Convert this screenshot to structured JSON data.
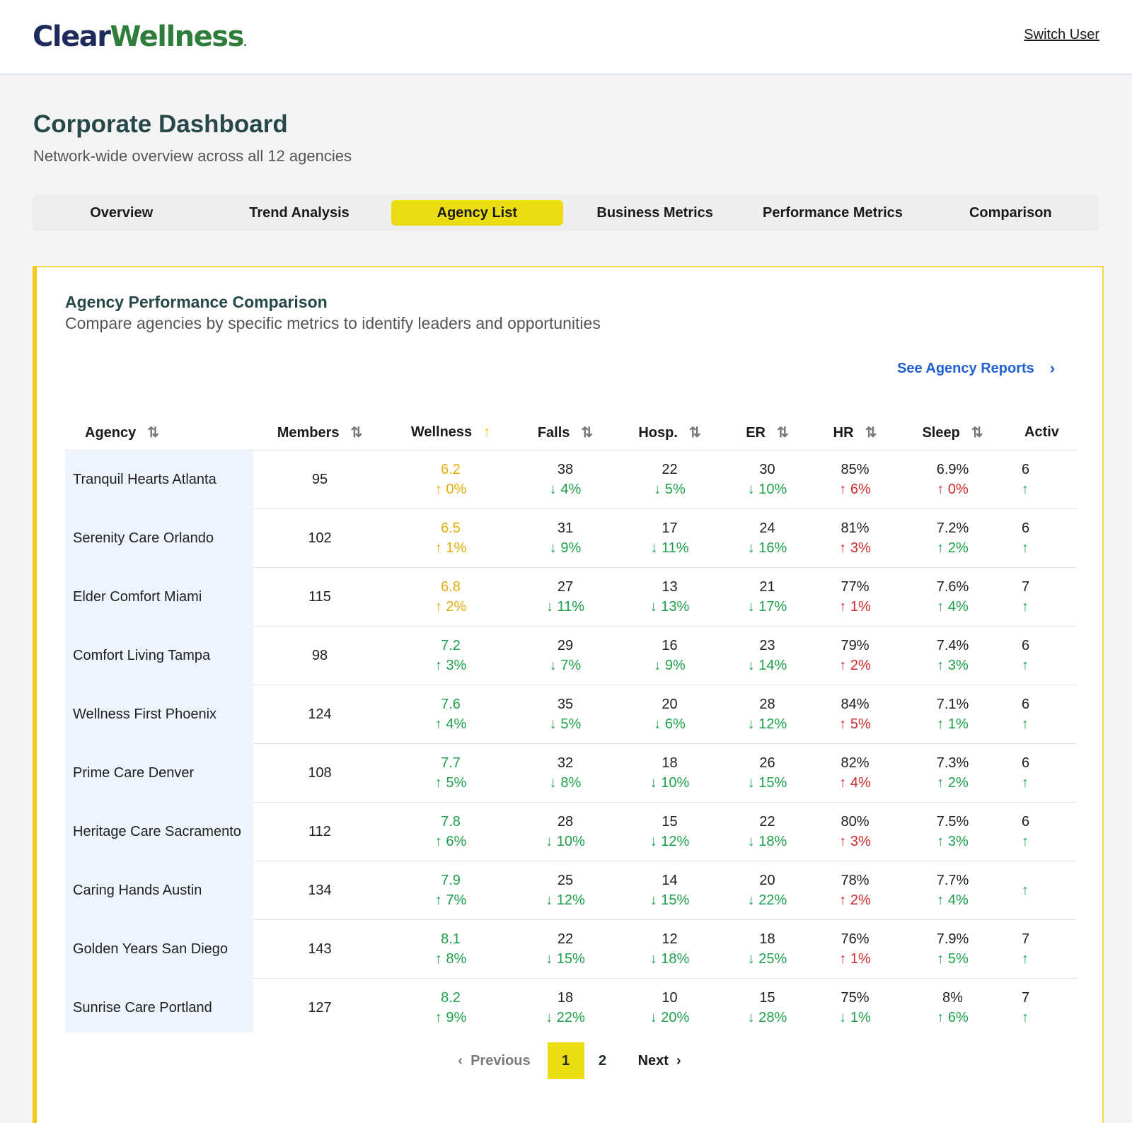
{
  "header": {
    "logo_part1": "Clear",
    "logo_part2": "Wellness",
    "logo_dot": ".",
    "switch_user": "Switch User"
  },
  "page": {
    "title": "Corporate Dashboard",
    "subtitle": "Network-wide overview across all 12 agencies"
  },
  "tabs": [
    {
      "label": "Overview",
      "active": false
    },
    {
      "label": "Trend Analysis",
      "active": false
    },
    {
      "label": "Agency List",
      "active": true
    },
    {
      "label": "Business Metrics",
      "active": false
    },
    {
      "label": "Performance Metrics",
      "active": false
    },
    {
      "label": "Comparison",
      "active": false
    }
  ],
  "card": {
    "title": "Agency Performance Comparison",
    "subtitle": "Compare agencies by specific metrics to identify leaders and opportunities",
    "reports_link": "See Agency Reports"
  },
  "table": {
    "columns": [
      "Agency",
      "Members",
      "Wellness",
      "Falls",
      "Hosp.",
      "ER",
      "HR",
      "Sleep",
      "Activ"
    ],
    "sort_icon": "⇅",
    "active_sort_icon": "↑",
    "active_sort_column": "Wellness",
    "rows": [
      {
        "agency": "Tranquil Hearts Atlanta",
        "members": "95",
        "wellness": {
          "v": "6.2",
          "c": "↑ 0%"
        },
        "falls": {
          "v": "38",
          "c": "↓ 4%"
        },
        "hosp": {
          "v": "22",
          "c": "↓ 5%"
        },
        "er": {
          "v": "30",
          "c": "↓ 10%"
        },
        "hr": {
          "v": "85%",
          "c": "↑ 6%"
        },
        "sleep": {
          "v": "6.9%",
          "c": "↑ 0%"
        },
        "activ": {
          "v": "6",
          "c": "↑"
        }
      },
      {
        "agency": "Serenity Care Orlando",
        "members": "102",
        "wellness": {
          "v": "6.5",
          "c": "↑ 1%"
        },
        "falls": {
          "v": "31",
          "c": "↓ 9%"
        },
        "hosp": {
          "v": "17",
          "c": "↓ 11%"
        },
        "er": {
          "v": "24",
          "c": "↓ 16%"
        },
        "hr": {
          "v": "81%",
          "c": "↑ 3%"
        },
        "sleep": {
          "v": "7.2%",
          "c": "↑ 2%"
        },
        "activ": {
          "v": "6",
          "c": "↑"
        }
      },
      {
        "agency": "Elder Comfort Miami",
        "members": "115",
        "wellness": {
          "v": "6.8",
          "c": "↑ 2%"
        },
        "falls": {
          "v": "27",
          "c": "↓ 11%"
        },
        "hosp": {
          "v": "13",
          "c": "↓ 13%"
        },
        "er": {
          "v": "21",
          "c": "↓ 17%"
        },
        "hr": {
          "v": "77%",
          "c": "↑ 1%"
        },
        "sleep": {
          "v": "7.6%",
          "c": "↑ 4%"
        },
        "activ": {
          "v": "7",
          "c": "↑"
        }
      },
      {
        "agency": "Comfort Living Tampa",
        "members": "98",
        "wellness": {
          "v": "7.2",
          "c": "↑ 3%"
        },
        "falls": {
          "v": "29",
          "c": "↓ 7%"
        },
        "hosp": {
          "v": "16",
          "c": "↓ 9%"
        },
        "er": {
          "v": "23",
          "c": "↓ 14%"
        },
        "hr": {
          "v": "79%",
          "c": "↑ 2%"
        },
        "sleep": {
          "v": "7.4%",
          "c": "↑ 3%"
        },
        "activ": {
          "v": "6",
          "c": "↑"
        }
      },
      {
        "agency": "Wellness First Phoenix",
        "members": "124",
        "wellness": {
          "v": "7.6",
          "c": "↑ 4%"
        },
        "falls": {
          "v": "35",
          "c": "↓ 5%"
        },
        "hosp": {
          "v": "20",
          "c": "↓ 6%"
        },
        "er": {
          "v": "28",
          "c": "↓ 12%"
        },
        "hr": {
          "v": "84%",
          "c": "↑ 5%"
        },
        "sleep": {
          "v": "7.1%",
          "c": "↑ 1%"
        },
        "activ": {
          "v": "6",
          "c": "↑"
        }
      },
      {
        "agency": "Prime Care Denver",
        "members": "108",
        "wellness": {
          "v": "7.7",
          "c": "↑ 5%"
        },
        "falls": {
          "v": "32",
          "c": "↓ 8%"
        },
        "hosp": {
          "v": "18",
          "c": "↓ 10%"
        },
        "er": {
          "v": "26",
          "c": "↓ 15%"
        },
        "hr": {
          "v": "82%",
          "c": "↑ 4%"
        },
        "sleep": {
          "v": "7.3%",
          "c": "↑ 2%"
        },
        "activ": {
          "v": "6",
          "c": "↑"
        }
      },
      {
        "agency": "Heritage Care Sacramento",
        "members": "112",
        "wellness": {
          "v": "7.8",
          "c": "↑ 6%"
        },
        "falls": {
          "v": "28",
          "c": "↓ 10%"
        },
        "hosp": {
          "v": "15",
          "c": "↓ 12%"
        },
        "er": {
          "v": "22",
          "c": "↓ 18%"
        },
        "hr": {
          "v": "80%",
          "c": "↑ 3%"
        },
        "sleep": {
          "v": "7.5%",
          "c": "↑ 3%"
        },
        "activ": {
          "v": "6",
          "c": "↑"
        }
      },
      {
        "agency": "Caring Hands Austin",
        "members": "134",
        "wellness": {
          "v": "7.9",
          "c": "↑ 7%"
        },
        "falls": {
          "v": "25",
          "c": "↓ 12%"
        },
        "hosp": {
          "v": "14",
          "c": "↓ 15%"
        },
        "er": {
          "v": "20",
          "c": "↓ 22%"
        },
        "hr": {
          "v": "78%",
          "c": "↑ 2%"
        },
        "sleep": {
          "v": "7.7%",
          "c": "↑ 4%"
        },
        "activ": {
          "v": "",
          "c": "↑"
        }
      },
      {
        "agency": "Golden Years San Diego",
        "members": "143",
        "wellness": {
          "v": "8.1",
          "c": "↑ 8%"
        },
        "falls": {
          "v": "22",
          "c": "↓ 15%"
        },
        "hosp": {
          "v": "12",
          "c": "↓ 18%"
        },
        "er": {
          "v": "18",
          "c": "↓ 25%"
        },
        "hr": {
          "v": "76%",
          "c": "↑ 1%"
        },
        "sleep": {
          "v": "7.9%",
          "c": "↑ 5%"
        },
        "activ": {
          "v": "7",
          "c": "↑"
        }
      },
      {
        "agency": "Sunrise Care Portland",
        "members": "127",
        "wellness": {
          "v": "8.2",
          "c": "↑ 9%"
        },
        "falls": {
          "v": "18",
          "c": "↓ 22%"
        },
        "hosp": {
          "v": "10",
          "c": "↓ 20%"
        },
        "er": {
          "v": "15",
          "c": "↓ 28%"
        },
        "hr": {
          "v": "75%",
          "c": "↓ 1%"
        },
        "sleep": {
          "v": "8%",
          "c": "↑ 6%"
        },
        "activ": {
          "v": "7",
          "c": "↑"
        }
      }
    ]
  },
  "pagination": {
    "prev": "Previous",
    "prev_icon": "‹",
    "pages": [
      "1",
      "2"
    ],
    "current": "1",
    "next": "Next",
    "next_icon": "›"
  },
  "colors": {
    "accent_yellow": "#ecdd12",
    "wellness_low": "#e5ac0a",
    "positive_green": "#1ea04a",
    "negative_red": "#d12a2a",
    "link_blue": "#1f5fd6"
  }
}
